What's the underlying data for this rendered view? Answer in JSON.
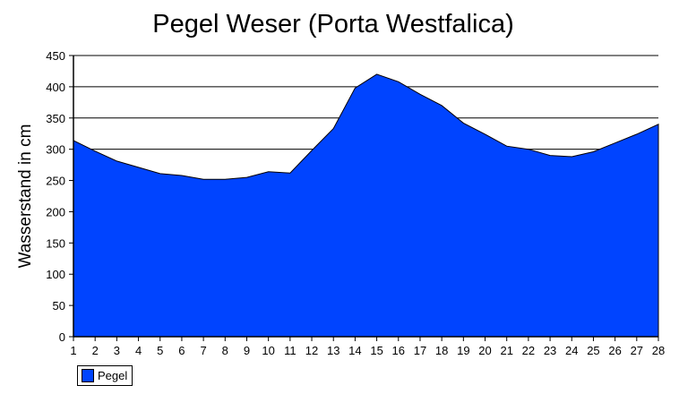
{
  "chart_data": {
    "type": "area",
    "title": "Pegel Weser (Porta Westfalica)",
    "xlabel": "",
    "ylabel": "Wasserstand in cm",
    "categories": [
      "1",
      "2",
      "3",
      "4",
      "5",
      "6",
      "7",
      "8",
      "9",
      "10",
      "11",
      "12",
      "13",
      "14",
      "15",
      "16",
      "17",
      "18",
      "19",
      "20",
      "21",
      "22",
      "23",
      "24",
      "25",
      "26",
      "27",
      "28"
    ],
    "series": [
      {
        "name": "Pegel",
        "color": "#0044ff",
        "values": [
          314,
          297,
          281,
          271,
          261,
          258,
          252,
          252,
          255,
          264,
          262,
          298,
          333,
          398,
          420,
          408,
          388,
          370,
          342,
          324,
          305,
          300,
          290,
          288,
          296,
          310,
          324,
          340
        ]
      }
    ],
    "ylim": [
      0,
      450
    ],
    "yticks": [
      0,
      50,
      100,
      150,
      200,
      250,
      300,
      350,
      400,
      450
    ],
    "grid": true,
    "legend_position": "bottom-left"
  },
  "legend": {
    "label": "Pegel"
  }
}
